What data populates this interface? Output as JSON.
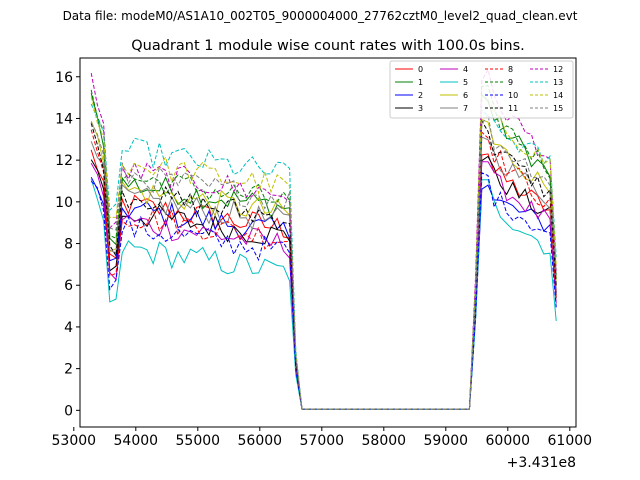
{
  "header": {
    "file_label": "Data file: modeM0/AS1A10_002T05_9000004000_27762cztM0_level2_quad_clean.evt"
  },
  "chart_data": {
    "type": "line",
    "title": "Quadrant 1 module wise count rates with 100.0s bins.",
    "xlabel": "",
    "ylabel": "",
    "x_offset_label": "+3.431e8",
    "xlim": [
      53100,
      61100
    ],
    "ylim": [
      -0.8,
      16.9
    ],
    "x_ticks": [
      53000,
      54000,
      55000,
      56000,
      57000,
      58000,
      59000,
      60000,
      61000
    ],
    "x_tick_labels": [
      "53000",
      "54000",
      "55000",
      "56000",
      "57000",
      "58000",
      "59000",
      "60000",
      "61000"
    ],
    "y_ticks": [
      0,
      2,
      4,
      6,
      8,
      10,
      12,
      14,
      16
    ],
    "y_tick_labels": [
      "0",
      "2",
      "4",
      "6",
      "8",
      "10",
      "12",
      "14",
      "16"
    ],
    "grid": false,
    "legend_position": "top-right",
    "series": [
      {
        "name": "0",
        "color": "#ff0000",
        "dash": "solid",
        "level": 8.7,
        "peak": 12.4
      },
      {
        "name": "1",
        "color": "#008000",
        "dash": "solid",
        "level": 9.7,
        "peak": 15.0
      },
      {
        "name": "2",
        "color": "#0000ff",
        "dash": "solid",
        "level": 8.5,
        "peak": 11.0
      },
      {
        "name": "3",
        "color": "#000000",
        "dash": "solid",
        "level": 8.3,
        "peak": 12.2
      },
      {
        "name": "4",
        "color": "#bf00bf",
        "dash": "solid",
        "level": 7.9,
        "peak": 12.0
      },
      {
        "name": "5",
        "color": "#00bfbf",
        "dash": "solid",
        "level": 6.6,
        "peak": 10.8
      },
      {
        "name": "6",
        "color": "#bfbf00",
        "dash": "solid",
        "level": 9.4,
        "peak": 13.8
      },
      {
        "name": "7",
        "color": "#808080",
        "dash": "solid",
        "level": 9.0,
        "peak": 13.2
      },
      {
        "name": "8",
        "color": "#ff0000",
        "dash": "dashed",
        "level": 8.2,
        "peak": 13.4
      },
      {
        "name": "9",
        "color": "#008000",
        "dash": "dashed",
        "level": 10.0,
        "peak": 15.2
      },
      {
        "name": "10",
        "color": "#0000ff",
        "dash": "dashed",
        "level": 7.6,
        "peak": 11.2
      },
      {
        "name": "11",
        "color": "#000000",
        "dash": "dashed",
        "level": 9.2,
        "peak": 13.6
      },
      {
        "name": "12",
        "color": "#bf00bf",
        "dash": "dashed",
        "level": 10.3,
        "peak": 16.0
      },
      {
        "name": "13",
        "color": "#00bfbf",
        "dash": "dashed",
        "level": 11.3,
        "peak": 14.4
      },
      {
        "name": "14",
        "color": "#bfbf00",
        "dash": "dashed",
        "level": 10.7,
        "peak": 14.9
      },
      {
        "name": "15",
        "color": "#808080",
        "dash": "dashed",
        "level": 10.1,
        "peak": 13.9
      }
    ]
  }
}
